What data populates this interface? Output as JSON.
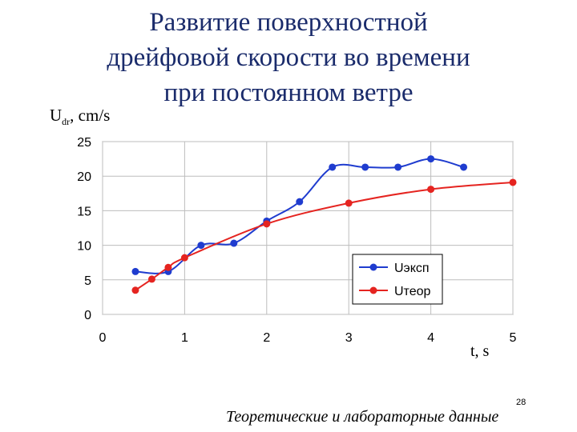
{
  "title_lines": [
    "Развитие поверхностной",
    "дрейфовой скорости во времени",
    "при постоянном ветре"
  ],
  "ylabel": {
    "main": "U",
    "sub": "dr",
    "unit": ", cm/s"
  },
  "xlabel": "t, s",
  "page_number": "28",
  "caption": "Теоретические и лабораторные данные",
  "chart_data": {
    "type": "line",
    "xlim": [
      0,
      5
    ],
    "ylim": [
      0,
      25
    ],
    "x_ticks": [
      "0",
      "1",
      "2",
      "3",
      "4",
      "5"
    ],
    "y_ticks": [
      "0",
      "5",
      "10",
      "15",
      "20",
      "25"
    ],
    "grid": true,
    "legend_position": "right",
    "series": [
      {
        "name": "Uэксп",
        "color": "#1f3ccf",
        "x": [
          0.4,
          0.8,
          1.2,
          1.6,
          2.0,
          2.4,
          2.8,
          3.2,
          3.6,
          4.0,
          4.4
        ],
        "y": [
          6.2,
          6.2,
          10.0,
          10.3,
          13.5,
          16.3,
          21.3,
          21.3,
          21.3,
          22.5,
          21.3
        ]
      },
      {
        "name": "Uтеор",
        "color": "#e52420",
        "x": [
          0.4,
          0.6,
          0.8,
          1.0,
          2.0,
          3.0,
          4.0,
          5.0
        ],
        "y": [
          3.5,
          5.1,
          6.8,
          8.2,
          13.1,
          16.1,
          18.1,
          19.1
        ]
      }
    ]
  }
}
